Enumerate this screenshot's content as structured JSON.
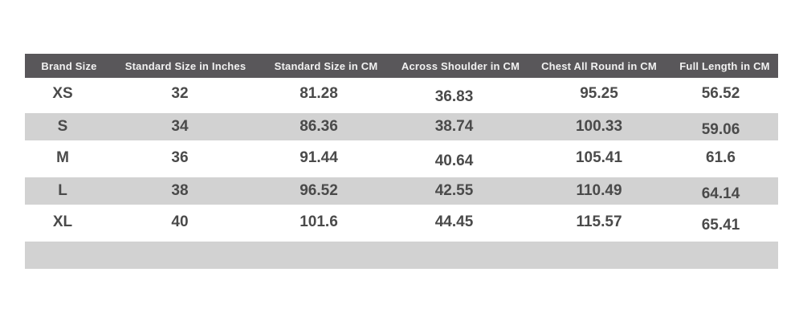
{
  "page": {
    "background": "#ffffff"
  },
  "table": {
    "columns": [
      "Brand Size",
      "Standard Size in Inches",
      "Standard Size in CM",
      "Across Shoulder in CM",
      "Chest All Round in CM",
      "Full Length in CM"
    ],
    "rows": [
      [
        "XS",
        "32",
        "81.28",
        "36.83",
        "95.25",
        "56.52"
      ],
      [
        "S",
        "34",
        "86.36",
        "38.74",
        "100.33",
        "59.06"
      ],
      [
        "M",
        "36",
        "91.44",
        "40.64",
        "105.41",
        "61.6"
      ],
      [
        "L",
        "38",
        "96.52",
        "42.55",
        "110.49",
        "64.14"
      ],
      [
        "XL",
        "40",
        "101.6",
        "44.45",
        "115.57",
        "65.41"
      ],
      [
        "",
        "",
        "",
        "",
        "",
        ""
      ]
    ],
    "striped_row_indexes": [
      1,
      3,
      5
    ],
    "colors": {
      "header_bg": "#59575a",
      "header_text": "#f2f2f2",
      "stripe_bg": "#d2d2d2",
      "row_bg": "#ffffff",
      "cell_text": "#4a4a4a"
    }
  },
  "chart_data": {
    "type": "table",
    "title": "",
    "columns": [
      "Brand Size",
      "Standard Size in Inches",
      "Standard Size in CM",
      "Across Shoulder in CM",
      "Chest All Round in CM",
      "Full Length in CM"
    ],
    "rows": [
      [
        "XS",
        32,
        81.28,
        36.83,
        95.25,
        56.52
      ],
      [
        "S",
        34,
        86.36,
        38.74,
        100.33,
        59.06
      ],
      [
        "M",
        36,
        91.44,
        40.64,
        105.41,
        61.6
      ],
      [
        "L",
        38,
        96.52,
        42.55,
        110.49,
        64.14
      ],
      [
        "XL",
        40,
        101.6,
        44.45,
        115.57,
        65.41
      ]
    ],
    "layout_hints": {
      "header_style": "dark-gray bar, white bold text",
      "zebra_striping": "rows S, L and one trailing empty row are light gray",
      "alignment": "all cells centered"
    }
  }
}
